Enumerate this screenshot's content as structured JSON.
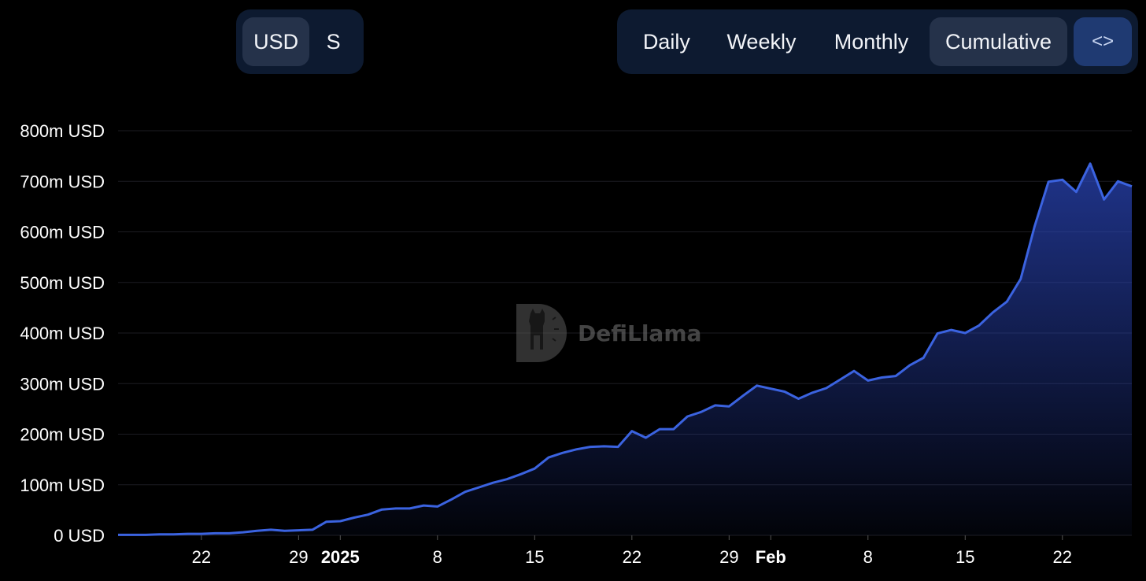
{
  "controls": {
    "unit_buttons": [
      {
        "label": "USD",
        "active": true
      },
      {
        "label": "S",
        "active": false
      }
    ],
    "period_buttons": [
      {
        "label": "Daily",
        "active": false
      },
      {
        "label": "Weekly",
        "active": false
      },
      {
        "label": "Monthly",
        "active": false
      },
      {
        "label": "Cumulative",
        "active": true
      }
    ],
    "embed_label": "<>"
  },
  "watermark": "DefiLlama",
  "colors": {
    "line": "#3b63e0",
    "fill_top": "#2a45b8",
    "background": "#000000"
  },
  "chart_data": {
    "type": "area",
    "title": "",
    "xlabel": "",
    "ylabel": "",
    "ylim": [
      0,
      800
    ],
    "y_unit": "m USD",
    "yticks": [
      "800m USD",
      "700m USD",
      "600m USD",
      "500m USD",
      "400m USD",
      "300m USD",
      "200m USD",
      "100m USD",
      "0 USD"
    ],
    "xticks": [
      {
        "label": "22",
        "date": "2024-12-22",
        "bold": false
      },
      {
        "label": "29",
        "date": "2024-12-29",
        "bold": false
      },
      {
        "label": "2025",
        "date": "2025-01-01",
        "bold": true
      },
      {
        "label": "8",
        "date": "2025-01-08",
        "bold": false
      },
      {
        "label": "15",
        "date": "2025-01-15",
        "bold": false
      },
      {
        "label": "22",
        "date": "2025-01-22",
        "bold": false
      },
      {
        "label": "29",
        "date": "2025-01-29",
        "bold": false
      },
      {
        "label": "Feb",
        "date": "2025-02-01",
        "bold": true
      },
      {
        "label": "8",
        "date": "2025-02-08",
        "bold": false
      },
      {
        "label": "15",
        "date": "2025-02-15",
        "bold": false
      },
      {
        "label": "22",
        "date": "2025-02-22",
        "bold": false
      }
    ],
    "grid": true,
    "legend": "none",
    "series": [
      {
        "points": [
          [
            "2024-12-16",
            1
          ],
          [
            "2024-12-17",
            1
          ],
          [
            "2024-12-18",
            1
          ],
          [
            "2024-12-19",
            2
          ],
          [
            "2024-12-20",
            2
          ],
          [
            "2024-12-21",
            3
          ],
          [
            "2024-12-22",
            3
          ],
          [
            "2024-12-23",
            4
          ],
          [
            "2024-12-24",
            4
          ],
          [
            "2024-12-25",
            6
          ],
          [
            "2024-12-26",
            9
          ],
          [
            "2024-12-27",
            11
          ],
          [
            "2024-12-28",
            9
          ],
          [
            "2024-12-29",
            10
          ],
          [
            "2024-12-30",
            11
          ],
          [
            "2024-12-31",
            27
          ],
          [
            "2025-01-01",
            28
          ],
          [
            "2025-01-02",
            35
          ],
          [
            "2025-01-03",
            41
          ],
          [
            "2025-01-04",
            51
          ],
          [
            "2025-01-05",
            53
          ],
          [
            "2025-01-06",
            53
          ],
          [
            "2025-01-07",
            59
          ],
          [
            "2025-01-08",
            57
          ],
          [
            "2025-01-09",
            71
          ],
          [
            "2025-01-10",
            86
          ],
          [
            "2025-01-11",
            95
          ],
          [
            "2025-01-12",
            104
          ],
          [
            "2025-01-13",
            111
          ],
          [
            "2025-01-14",
            121
          ],
          [
            "2025-01-15",
            132
          ],
          [
            "2025-01-16",
            154
          ],
          [
            "2025-01-17",
            163
          ],
          [
            "2025-01-18",
            170
          ],
          [
            "2025-01-19",
            175
          ],
          [
            "2025-01-20",
            176
          ],
          [
            "2025-01-21",
            175
          ],
          [
            "2025-01-22",
            206
          ],
          [
            "2025-01-23",
            193
          ],
          [
            "2025-01-24",
            210
          ],
          [
            "2025-01-25",
            210
          ],
          [
            "2025-01-26",
            235
          ],
          [
            "2025-01-27",
            244
          ],
          [
            "2025-01-28",
            257
          ],
          [
            "2025-01-29",
            255
          ],
          [
            "2025-01-30",
            276
          ],
          [
            "2025-01-31",
            296
          ],
          [
            "2025-02-01",
            290
          ],
          [
            "2025-02-02",
            284
          ],
          [
            "2025-02-03",
            270
          ],
          [
            "2025-02-04",
            282
          ],
          [
            "2025-02-05",
            291
          ],
          [
            "2025-02-06",
            308
          ],
          [
            "2025-02-07",
            325
          ],
          [
            "2025-02-08",
            306
          ],
          [
            "2025-02-09",
            312
          ],
          [
            "2025-02-10",
            315
          ],
          [
            "2025-02-11",
            336
          ],
          [
            "2025-02-12",
            351
          ],
          [
            "2025-02-13",
            399
          ],
          [
            "2025-02-14",
            406
          ],
          [
            "2025-02-15",
            400
          ],
          [
            "2025-02-16",
            415
          ],
          [
            "2025-02-17",
            441
          ],
          [
            "2025-02-18",
            462
          ],
          [
            "2025-02-19",
            507
          ],
          [
            "2025-02-20",
            611
          ],
          [
            "2025-02-21",
            699
          ],
          [
            "2025-02-22",
            703
          ],
          [
            "2025-02-23",
            679
          ],
          [
            "2025-02-24",
            735
          ],
          [
            "2025-02-25",
            664
          ],
          [
            "2025-02-26",
            700
          ],
          [
            "2025-02-27",
            690
          ]
        ]
      }
    ]
  }
}
